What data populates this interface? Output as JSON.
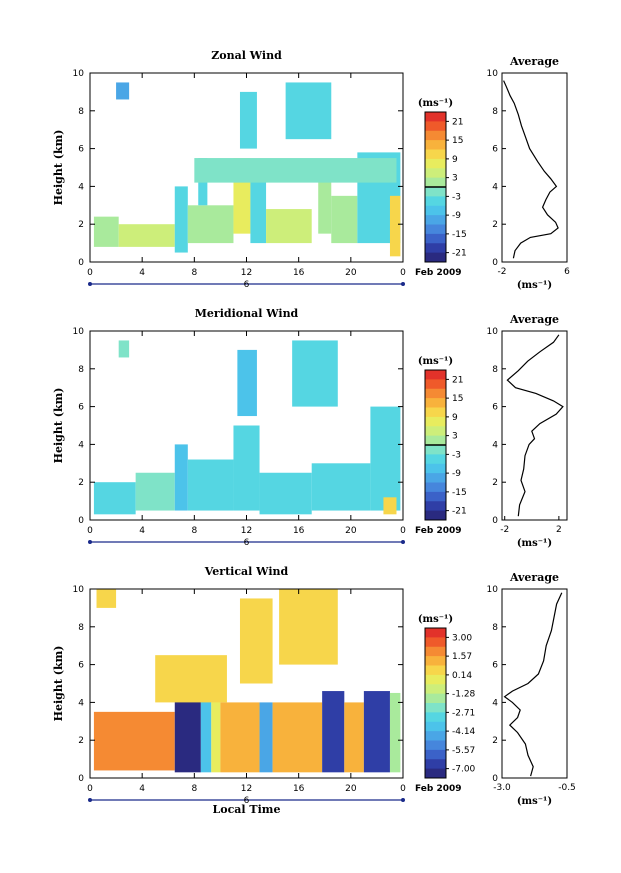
{
  "chart_data": [
    {
      "type": "heatmap",
      "title": "Zonal Wind",
      "ylabel": "Height (km)",
      "ylim": [
        0,
        10
      ],
      "xlim": [
        0,
        24
      ],
      "x_ticks": [
        "0",
        "4",
        "8",
        "12",
        "16",
        "20",
        "0"
      ],
      "y_ticks": [
        "0",
        "2",
        "4",
        "6",
        "8",
        "10"
      ],
      "date_mark": "6",
      "date_label": "Feb 2009",
      "colorbar": {
        "unit": "(ms⁻¹)",
        "ticks": [
          "21",
          "15",
          "9",
          "3",
          "-3",
          "-9",
          "-15",
          "-21"
        ],
        "zero_line_at": "3/-3 boundary"
      },
      "average": {
        "title": "Average",
        "xlabel": "(ms⁻¹)",
        "x_ticks": [
          "-2",
          "6"
        ],
        "xlim": [
          -2,
          6
        ],
        "profile": [
          [
            -0.6,
            0.2
          ],
          [
            -0.4,
            0.6
          ],
          [
            0.3,
            1.0
          ],
          [
            1.5,
            1.3
          ],
          [
            4.0,
            1.5
          ],
          [
            4.9,
            1.8
          ],
          [
            4.6,
            2.1
          ],
          [
            3.6,
            2.5
          ],
          [
            3.0,
            2.9
          ],
          [
            3.4,
            3.3
          ],
          [
            3.9,
            3.7
          ],
          [
            4.7,
            4.0
          ],
          [
            4.0,
            4.4
          ],
          [
            3.2,
            4.8
          ],
          [
            2.4,
            5.3
          ],
          [
            1.4,
            6.0
          ],
          [
            0.9,
            6.6
          ],
          [
            0.4,
            7.2
          ],
          [
            0.0,
            7.8
          ],
          [
            -0.5,
            8.4
          ],
          [
            -1.0,
            8.8
          ],
          [
            -1.5,
            9.3
          ],
          [
            -1.8,
            9.6
          ]
        ]
      },
      "fields": [
        {
          "x": [
            0.3,
            2.2
          ],
          "y": [
            0.8,
            2.4
          ],
          "level": "0"
        },
        {
          "x": [
            2.2,
            6.5
          ],
          "y": [
            0.8,
            2.0
          ],
          "level": "5"
        },
        {
          "x": [
            6.5,
            7.5
          ],
          "y": [
            0.5,
            4.0
          ],
          "level": "-3"
        },
        {
          "x": [
            7.5,
            11.0
          ],
          "y": [
            1.0,
            3.0
          ],
          "level": "2"
        },
        {
          "x": [
            8.3,
            9.0
          ],
          "y": [
            3.0,
            5.5
          ],
          "level": "-5"
        },
        {
          "x": [
            11.0,
            12.3
          ],
          "y": [
            1.5,
            5.5
          ],
          "level": "6"
        },
        {
          "x": [
            12.3,
            13.5
          ],
          "y": [
            1.0,
            5.0
          ],
          "level": "-3"
        },
        {
          "x": [
            13.5,
            17.0
          ],
          "y": [
            1.0,
            2.8
          ],
          "level": "3"
        },
        {
          "x": [
            17.5,
            18.5
          ],
          "y": [
            1.5,
            4.5
          ],
          "level": "0"
        },
        {
          "x": [
            18.5,
            20.5
          ],
          "y": [
            1.0,
            3.5
          ],
          "level": "1"
        },
        {
          "x": [
            20.5,
            23.8
          ],
          "y": [
            1.0,
            5.8
          ],
          "level": "-3"
        },
        {
          "x": [
            23.0,
            23.8
          ],
          "y": [
            0.3,
            3.5
          ],
          "level": "10"
        },
        {
          "x": [
            2.0,
            3.0
          ],
          "y": [
            8.6,
            9.5
          ],
          "level": "-10"
        },
        {
          "x": [
            11.5,
            12.8
          ],
          "y": [
            6.0,
            9.0
          ],
          "level": "-4"
        },
        {
          "x": [
            15.0,
            18.5
          ],
          "y": [
            6.5,
            9.5
          ],
          "level": "-5"
        },
        {
          "x": [
            8.0,
            23.5
          ],
          "y": [
            4.2,
            5.5
          ],
          "level": "-1"
        }
      ]
    },
    {
      "type": "heatmap",
      "title": "Meridional Wind",
      "ylabel": "Height (km)",
      "ylim": [
        0,
        10
      ],
      "xlim": [
        0,
        24
      ],
      "x_ticks": [
        "0",
        "4",
        "8",
        "12",
        "16",
        "20",
        "0"
      ],
      "y_ticks": [
        "0",
        "2",
        "4",
        "6",
        "8",
        "10"
      ],
      "date_mark": "6",
      "date_label": "Feb 2009",
      "colorbar": {
        "unit": "(ms⁻¹)",
        "ticks": [
          "21",
          "15",
          "9",
          "3",
          "-3",
          "-9",
          "-15",
          "-21"
        ],
        "zero_line_at": "3/-3 boundary"
      },
      "average": {
        "title": "Average",
        "xlabel": "(ms⁻¹)",
        "x_ticks": [
          "-2",
          "2"
        ],
        "xlim": [
          -2.2,
          2.6
        ],
        "profile": [
          [
            -1.0,
            0.2
          ],
          [
            -0.9,
            0.8
          ],
          [
            -0.5,
            1.5
          ],
          [
            -0.8,
            2.1
          ],
          [
            -0.6,
            2.7
          ],
          [
            -0.5,
            3.4
          ],
          [
            -0.2,
            4.0
          ],
          [
            0.2,
            4.3
          ],
          [
            0.0,
            4.7
          ],
          [
            0.6,
            5.1
          ],
          [
            1.8,
            5.6
          ],
          [
            2.3,
            6.0
          ],
          [
            1.6,
            6.3
          ],
          [
            0.3,
            6.7
          ],
          [
            -1.2,
            7.0
          ],
          [
            -1.8,
            7.4
          ],
          [
            -1.0,
            7.9
          ],
          [
            -0.3,
            8.4
          ],
          [
            0.6,
            8.9
          ],
          [
            1.6,
            9.4
          ],
          [
            2.0,
            9.8
          ]
        ]
      },
      "fields": [
        {
          "x": [
            0.3,
            3.5
          ],
          "y": [
            0.3,
            2.0
          ],
          "level": "-4"
        },
        {
          "x": [
            3.5,
            6.5
          ],
          "y": [
            0.5,
            2.5
          ],
          "level": "-2"
        },
        {
          "x": [
            6.5,
            7.5
          ],
          "y": [
            0.5,
            4.0
          ],
          "level": "-7"
        },
        {
          "x": [
            7.5,
            11.0
          ],
          "y": [
            0.5,
            3.2
          ],
          "level": "-3"
        },
        {
          "x": [
            11.0,
            13.0
          ],
          "y": [
            0.5,
            5.0
          ],
          "level": "-5"
        },
        {
          "x": [
            13.0,
            17.0
          ],
          "y": [
            0.3,
            2.5
          ],
          "level": "-4"
        },
        {
          "x": [
            17.0,
            21.5
          ],
          "y": [
            0.5,
            3.0
          ],
          "level": "-3"
        },
        {
          "x": [
            21.5,
            23.8
          ],
          "y": [
            0.5,
            6.0
          ],
          "level": "-4"
        },
        {
          "x": [
            22.5,
            23.5
          ],
          "y": [
            0.3,
            1.2
          ],
          "level": "9"
        },
        {
          "x": [
            11.3,
            12.8
          ],
          "y": [
            5.5,
            9.0
          ],
          "level": "-6"
        },
        {
          "x": [
            15.5,
            19.0
          ],
          "y": [
            6.0,
            9.5
          ],
          "level": "-4"
        },
        {
          "x": [
            2.2,
            3.0
          ],
          "y": [
            8.6,
            9.5
          ],
          "level": "-2"
        }
      ]
    },
    {
      "type": "heatmap",
      "title": "Vertical Wind",
      "ylabel": "Height (km)",
      "xlabel": "Local Time",
      "ylim": [
        0,
        10
      ],
      "xlim": [
        0,
        24
      ],
      "x_ticks": [
        "0",
        "4",
        "8",
        "12",
        "16",
        "20",
        "0"
      ],
      "y_ticks": [
        "0",
        "2",
        "4",
        "6",
        "8",
        "10"
      ],
      "date_mark": "6",
      "date_label": "Feb 2009",
      "colorbar": {
        "unit": "(ms⁻¹)",
        "ticks": [
          "3.00",
          "1.57",
          "0.14",
          "-1.28",
          "-2.71",
          "-4.14",
          "-5.57",
          "-7.00"
        ]
      },
      "average": {
        "title": "Average",
        "xlabel": "(ms⁻¹)",
        "x_ticks": [
          "-3.0",
          "-0.5"
        ],
        "xlim": [
          -3.0,
          -0.5
        ],
        "profile": [
          [
            -1.9,
            0.1
          ],
          [
            -1.8,
            0.6
          ],
          [
            -2.0,
            1.2
          ],
          [
            -2.1,
            1.8
          ],
          [
            -2.4,
            2.4
          ],
          [
            -2.7,
            2.8
          ],
          [
            -2.4,
            3.2
          ],
          [
            -2.3,
            3.6
          ],
          [
            -2.6,
            4.0
          ],
          [
            -2.9,
            4.3
          ],
          [
            -2.6,
            4.6
          ],
          [
            -2.0,
            5.0
          ],
          [
            -1.6,
            5.5
          ],
          [
            -1.4,
            6.2
          ],
          [
            -1.3,
            7.0
          ],
          [
            -1.1,
            7.8
          ],
          [
            -1.0,
            8.5
          ],
          [
            -0.9,
            9.2
          ],
          [
            -0.7,
            9.8
          ]
        ]
      },
      "fields": [
        {
          "x": [
            0.3,
            6.5
          ],
          "y": [
            0.4,
            3.5
          ],
          "level": "1.2"
        },
        {
          "x": [
            6.5,
            8.5
          ],
          "y": [
            0.3,
            4.8
          ],
          "level": "-6.5"
        },
        {
          "x": [
            8.5,
            9.3
          ],
          "y": [
            0.3,
            4.5
          ],
          "level": "-3.5"
        },
        {
          "x": [
            9.3,
            10.0
          ],
          "y": [
            0.3,
            4.2
          ],
          "level": "-0.5"
        },
        {
          "x": [
            10.0,
            13.0
          ],
          "y": [
            0.3,
            4.0
          ],
          "level": "0.5"
        },
        {
          "x": [
            13.0,
            14.0
          ],
          "y": [
            0.3,
            4.0
          ],
          "level": "-4.5"
        },
        {
          "x": [
            14.0,
            17.8
          ],
          "y": [
            0.3,
            4.0
          ],
          "level": "0.8"
        },
        {
          "x": [
            17.8,
            19.5
          ],
          "y": [
            0.3,
            4.6
          ],
          "level": "-6.2"
        },
        {
          "x": [
            19.5,
            21.0
          ],
          "y": [
            0.3,
            4.0
          ],
          "level": "0.5"
        },
        {
          "x": [
            21.0,
            23.0
          ],
          "y": [
            0.3,
            4.6
          ],
          "level": "-5.8"
        },
        {
          "x": [
            23.0,
            23.8
          ],
          "y": [
            0.3,
            4.5
          ],
          "level": "-2.0"
        },
        {
          "x": [
            5.0,
            10.5
          ],
          "y": [
            4.0,
            6.5
          ],
          "level": "0.3"
        },
        {
          "x": [
            11.5,
            14.0
          ],
          "y": [
            5.0,
            9.5
          ],
          "level": "0.3"
        },
        {
          "x": [
            14.5,
            19.0
          ],
          "y": [
            6.0,
            10.0
          ],
          "level": "0.3"
        },
        {
          "x": [
            0.5,
            2.0
          ],
          "y": [
            9.0,
            10.0
          ],
          "level": "0.3"
        }
      ]
    }
  ]
}
